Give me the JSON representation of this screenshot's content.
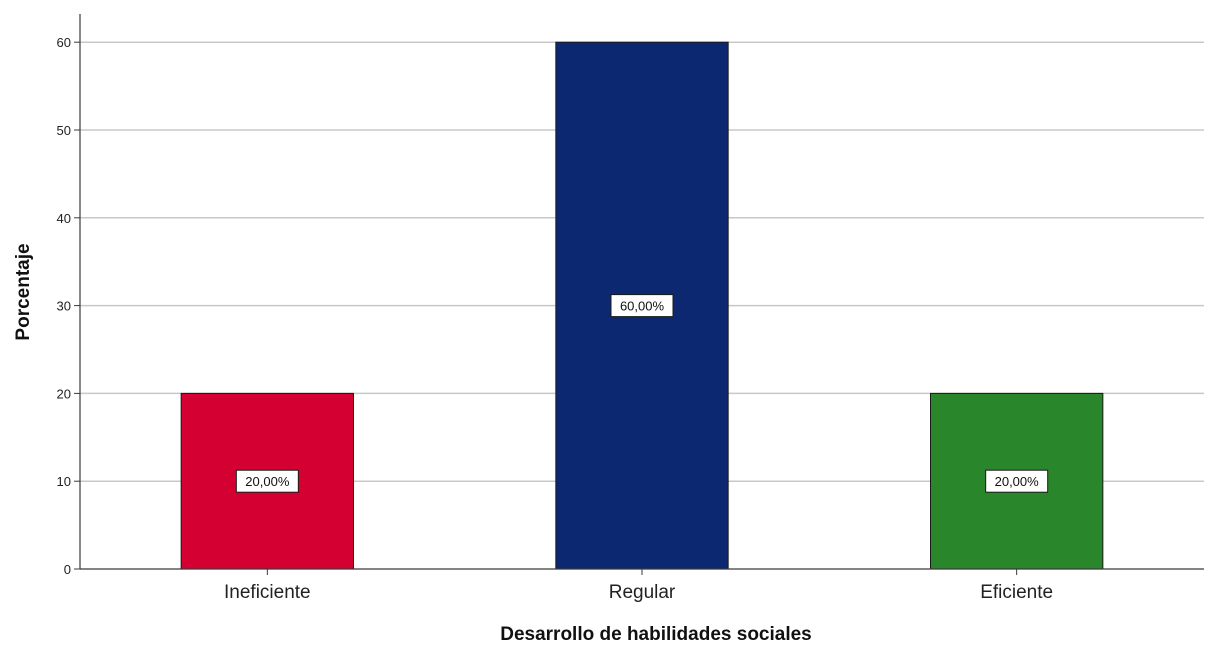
{
  "chart_data": {
    "type": "bar",
    "title": "",
    "xlabel": "Desarrollo de habilidades sociales",
    "ylabel": "Porcentaje",
    "categories": [
      "Ineficiente",
      "Regular",
      "Eficiente"
    ],
    "values": [
      20,
      60,
      20
    ],
    "data_labels": [
      "20,00%",
      "60,00%",
      "20,00%"
    ],
    "bar_colors": [
      "#d50032",
      "#0b2870",
      "#2a862a"
    ],
    "ylim": [
      0,
      63
    ],
    "yticks": [
      0,
      10,
      20,
      30,
      40,
      50,
      60
    ],
    "grid": true,
    "legend": "none"
  }
}
